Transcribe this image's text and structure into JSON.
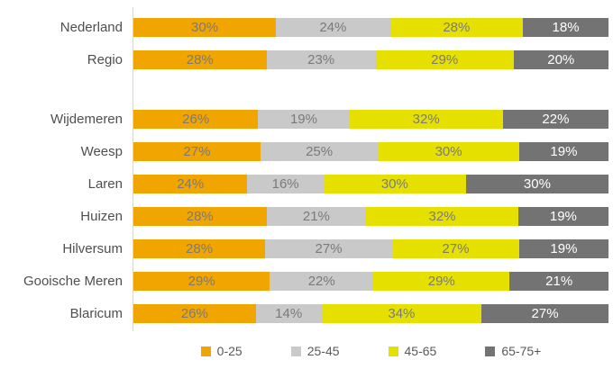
{
  "chart_data": {
    "type": "bar",
    "variant": "horizontal-stacked-100",
    "title": "",
    "xlabel": "",
    "ylabel": "",
    "grid": false,
    "legend_position": "bottom",
    "axis_line_color": "#D6D6D6",
    "value_suffix": "%",
    "categories": [
      "Nederland",
      "Regio",
      "Wijdemeren",
      "Weesp",
      "Laren",
      "Huizen",
      "Hilversum",
      "Gooische Meren",
      "Blaricum"
    ],
    "group_gap_after": "Regio",
    "series": [
      {
        "name": "0-25",
        "color": "#F0A500",
        "label_color": "#7A7A7A",
        "values": [
          30,
          28,
          26,
          27,
          24,
          28,
          28,
          29,
          26
        ]
      },
      {
        "name": "25-45",
        "color": "#C9C9C9",
        "label_color": "#7A7A7A",
        "values": [
          24,
          23,
          19,
          25,
          16,
          21,
          27,
          22,
          14
        ]
      },
      {
        "name": "45-65",
        "color": "#E5E000",
        "label_color": "#7A7A7A",
        "values": [
          28,
          29,
          32,
          30,
          30,
          32,
          27,
          29,
          34
        ]
      },
      {
        "name": "65-75+",
        "color": "#737373",
        "label_color": "#FFFFFF",
        "values": [
          18,
          20,
          22,
          19,
          30,
          19,
          19,
          21,
          27
        ]
      }
    ]
  }
}
